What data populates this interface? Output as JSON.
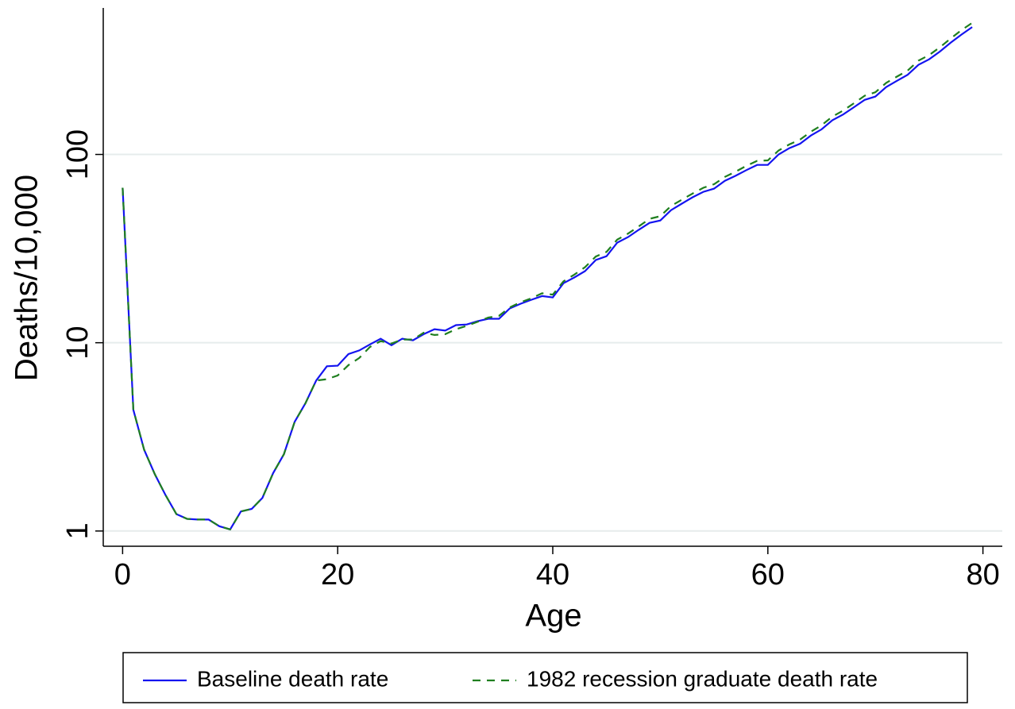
{
  "chart_data": {
    "type": "line",
    "xlabel": "Age",
    "ylabel": "Deaths/10,000",
    "x": [
      0,
      1,
      2,
      3,
      4,
      5,
      6,
      7,
      8,
      9,
      10,
      11,
      12,
      13,
      14,
      15,
      16,
      17,
      18,
      19,
      20,
      21,
      22,
      23,
      24,
      25,
      26,
      27,
      28,
      29,
      30,
      31,
      32,
      33,
      34,
      35,
      36,
      37,
      38,
      39,
      40,
      41,
      42,
      43,
      44,
      45,
      46,
      47,
      48,
      49,
      50,
      51,
      52,
      53,
      54,
      55,
      56,
      57,
      58,
      59,
      60,
      61,
      62,
      63,
      64,
      65,
      66,
      67,
      68,
      69,
      70,
      71,
      72,
      73,
      74,
      75,
      76,
      77,
      78,
      79
    ],
    "series": [
      {
        "name": "Baseline death rate",
        "color": "#1414f0",
        "dash": false,
        "values": [
          66.5,
          4.4,
          2.7,
          2.0,
          1.55,
          1.23,
          1.16,
          1.15,
          1.15,
          1.06,
          1.02,
          1.27,
          1.31,
          1.5,
          2.03,
          2.56,
          3.8,
          4.77,
          6.3,
          7.5,
          7.55,
          8.7,
          9.1,
          9.8,
          10.5,
          9.7,
          10.5,
          10.3,
          11.1,
          11.8,
          11.6,
          12.4,
          12.5,
          13.0,
          13.4,
          13.4,
          15.2,
          16.1,
          16.9,
          17.7,
          17.4,
          20.7,
          22.2,
          24.0,
          27.5,
          28.8,
          34.0,
          36.4,
          39.8,
          43.3,
          44.6,
          50.6,
          54.8,
          59.2,
          63.3,
          65.8,
          72.5,
          77,
          82.5,
          88,
          88,
          100,
          108,
          114,
          126,
          136,
          152,
          163,
          178,
          195,
          203,
          228,
          246,
          265,
          299,
          320,
          352,
          392,
          433,
          475
        ]
      },
      {
        "name": "1982 recession graduate death rate",
        "color": "#1f7f1f",
        "dash": true,
        "values": [
          66.5,
          4.4,
          2.7,
          2.0,
          1.55,
          1.23,
          1.16,
          1.15,
          1.15,
          1.06,
          1.02,
          1.27,
          1.31,
          1.5,
          2.03,
          2.56,
          3.8,
          4.77,
          6.3,
          6.4,
          6.7,
          7.6,
          8.3,
          9.5,
          10.2,
          9.9,
          10.4,
          10.4,
          11.3,
          11.0,
          11.1,
          11.8,
          12.3,
          12.9,
          13.6,
          13.9,
          15.4,
          16.4,
          17.2,
          18.3,
          18.0,
          21.2,
          23.0,
          25.2,
          28.7,
          30.4,
          35.3,
          38.0,
          41.5,
          45.5,
          47.0,
          53.2,
          57.5,
          62,
          66.5,
          69.5,
          76,
          81,
          87,
          92.5,
          93,
          105,
          113,
          120,
          132,
          143,
          159,
          171,
          187,
          205,
          214,
          240,
          259,
          279,
          315,
          337,
          371,
          413,
          457,
          500
        ]
      }
    ],
    "xlim": [
      -1.8,
      81.8
    ],
    "xticks": [
      0,
      20,
      40,
      60,
      80
    ],
    "ylim": [
      0.83,
      600
    ],
    "yticks": [
      1,
      10,
      100
    ],
    "ylog": true,
    "grid": true,
    "legend": "bottom"
  }
}
